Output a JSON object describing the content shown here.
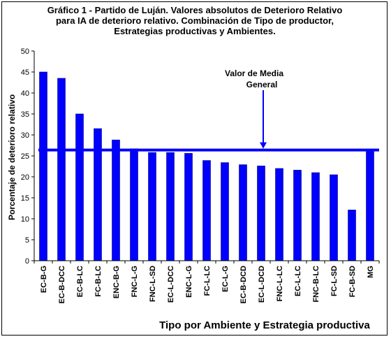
{
  "chart_data": {
    "type": "bar",
    "title_lines": [
      "Gráfico 1 - Partido de Luján. Valores absolutos de Deterioro Relativo",
      "para IA de deterioro relativo. Combinación de Tipo de productor,",
      "Estrategias productivas y Ambientes."
    ],
    "xlabel": "Tipo por Ambiente y Estrategia productiva",
    "ylabel": "Porcentaje de deterioro relativo",
    "ylim": [
      0,
      50
    ],
    "yticks": [
      0,
      5,
      10,
      15,
      20,
      25,
      30,
      35,
      40,
      45,
      50
    ],
    "categories": [
      "EC-B-G",
      "EC-B-DCC",
      "EC-B-LC",
      "FC-B-LC",
      "ENC-B-G",
      "FNC-L-G",
      "FNC-L-SD",
      "EC-L-DCC",
      "ENC-L-G",
      "FC-L-LC",
      "EC-L-G",
      "EC-B-DCD",
      "EC-L-DCD",
      "FNC-L-LC",
      "EC-L-LC",
      "FNC-B-LC",
      "FC-L-SD",
      "FC-B-SD",
      "MG"
    ],
    "values": [
      45.0,
      43.5,
      35.0,
      31.5,
      28.8,
      26.7,
      25.8,
      25.8,
      25.6,
      23.9,
      23.4,
      22.9,
      22.6,
      22.0,
      21.6,
      21.0,
      20.5,
      12.1,
      26.5
    ],
    "reference_line": {
      "value": 26.4,
      "label_lines": [
        "Valor de Media",
        "General"
      ]
    },
    "grid": false,
    "colors": {
      "bar": "#0000FF",
      "bar_edge": "#000080",
      "reference_line": "#0000FF",
      "axis": "#000000"
    }
  }
}
